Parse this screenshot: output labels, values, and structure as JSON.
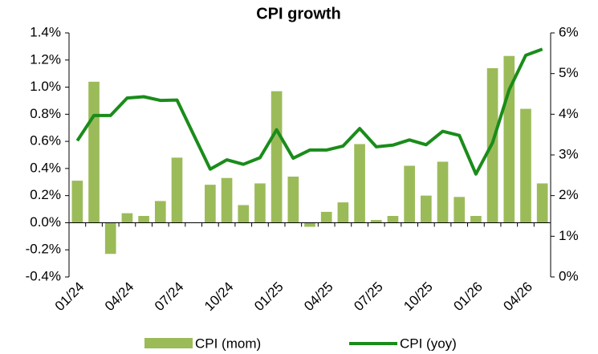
{
  "chart_data": {
    "type": "bar",
    "title": "CPI growth",
    "categories": [
      "01/24",
      null,
      null,
      "04/24",
      null,
      null,
      "07/24",
      null,
      null,
      "10/24",
      null,
      null,
      "01/25",
      null,
      null,
      "04/25",
      null,
      null,
      "07/25",
      null,
      null,
      "10/25",
      null,
      null,
      "01/26",
      null,
      null,
      "04/26",
      null
    ],
    "series": [
      {
        "name": "CPI (mom)",
        "type": "bar",
        "color": "#9bbb59",
        "values": [
          0.31,
          1.04,
          -0.23,
          0.07,
          0.05,
          0.16,
          0.48,
          null,
          0.28,
          0.33,
          0.13,
          0.29,
          0.97,
          0.34,
          -0.03,
          0.08,
          0.15,
          0.58,
          0.02,
          0.05,
          0.42,
          0.2,
          0.45,
          0.19,
          0.05,
          1.14,
          1.23,
          0.84,
          0.29
        ]
      },
      {
        "name": "CPI (yoy)",
        "type": "line",
        "axis": "y2",
        "color": "#1a8c1a",
        "values": [
          3.35,
          3.97,
          3.97,
          4.4,
          4.43,
          4.34,
          4.35,
          3.5,
          2.65,
          2.88,
          2.77,
          2.93,
          3.62,
          2.92,
          3.12,
          3.12,
          3.22,
          3.65,
          3.2,
          3.24,
          3.37,
          3.25,
          3.58,
          3.48,
          2.53,
          3.3,
          4.6,
          5.45,
          5.6
        ]
      }
    ],
    "ylim": [
      -0.4,
      1.4
    ],
    "yticks": [
      {
        "value": -0.4,
        "label": "-0.4%"
      },
      {
        "value": -0.2,
        "label": "-0.2%"
      },
      {
        "value": 0,
        "label": "0.0%"
      },
      {
        "value": 0.2,
        "label": "0.2%"
      },
      {
        "value": 0.4,
        "label": "0.4%"
      },
      {
        "value": 0.6,
        "label": "0.6%"
      },
      {
        "value": 0.8,
        "label": "0.8%"
      },
      {
        "value": 1.0,
        "label": "1.0%"
      },
      {
        "value": 1.2,
        "label": "1.2%"
      },
      {
        "value": 1.4,
        "label": "1.4%"
      }
    ],
    "y2lim": [
      0,
      6
    ],
    "y2ticks": [
      {
        "value": 0,
        "label": "0%"
      },
      {
        "value": 1,
        "label": "1%"
      },
      {
        "value": 2,
        "label": "2%"
      },
      {
        "value": 3,
        "label": "3%"
      },
      {
        "value": 4,
        "label": "4%"
      },
      {
        "value": 5,
        "label": "5%"
      },
      {
        "value": 6,
        "label": "6%"
      }
    ],
    "legend": "bottom"
  }
}
